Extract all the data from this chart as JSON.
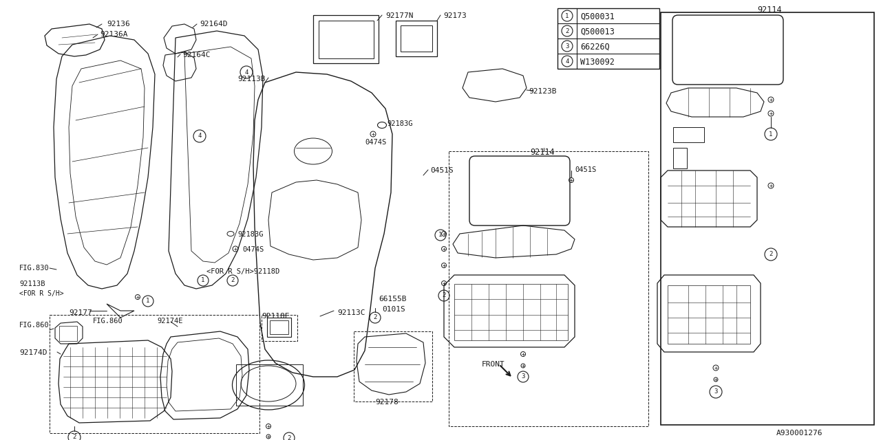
{
  "bg_color": "#FFFFFF",
  "line_color": "#1a1a1a",
  "legend": [
    {
      "num": "1",
      "code": "Q500031"
    },
    {
      "num": "2",
      "code": "Q500013"
    },
    {
      "num": "3",
      "code": "66226Q"
    },
    {
      "num": "4",
      "code": "W130092"
    }
  ],
  "diagram_id": "A930001276",
  "font": "monospace",
  "lw_thin": 0.6,
  "lw_med": 0.9,
  "lw_thick": 1.2
}
